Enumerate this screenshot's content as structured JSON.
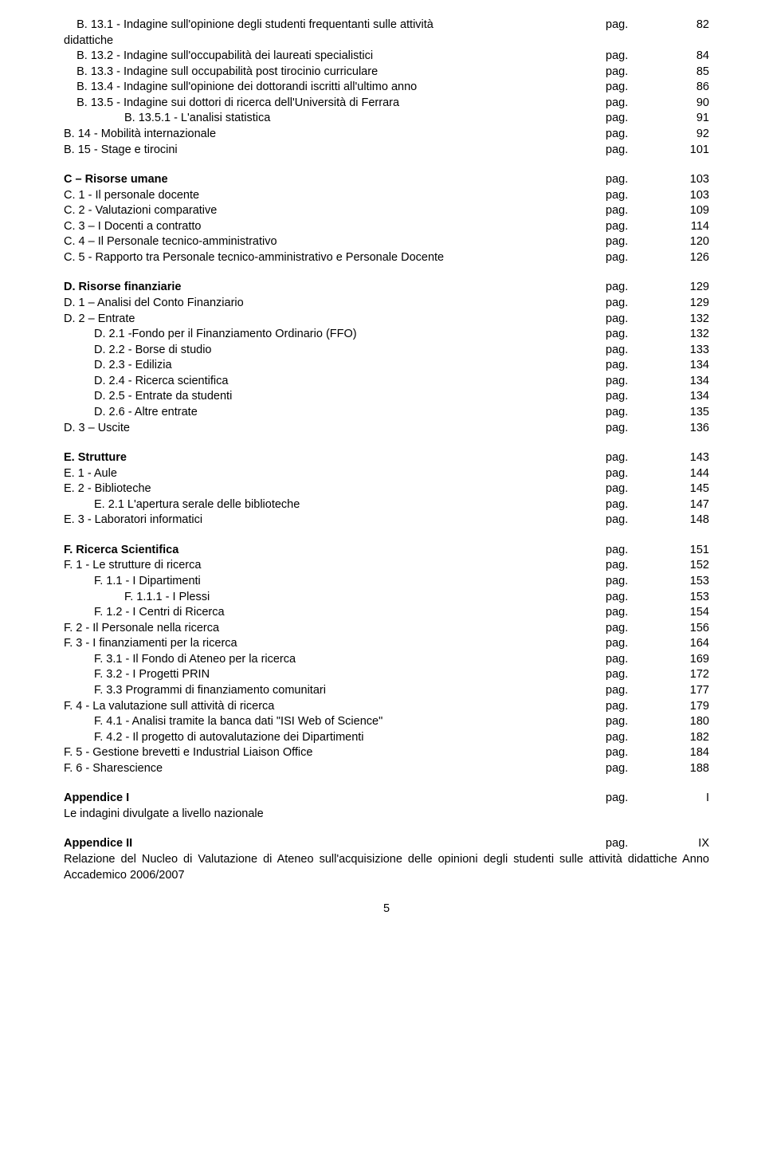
{
  "sections": [
    {
      "spacer": false,
      "rows": [
        {
          "title": "    B. 13.1 - Indagine sull'opinione degli studenti frequentanti sulle attività\ndidattiche",
          "pag": "pag.",
          "num": "82"
        },
        {
          "title": "    B. 13.2 - Indagine sull'occupabilità dei laureati specialistici",
          "pag": "pag.",
          "num": "84"
        },
        {
          "title": "    B. 13.3 - Indagine sull occupabilità post tirocinio curriculare",
          "pag": "pag.",
          "num": "85"
        },
        {
          "title": "    B. 13.4 - Indagine sull'opinione dei dottorandi iscritti all'ultimo anno",
          "pag": "pag.",
          "num": "86"
        },
        {
          "title": "    B. 13.5 - Indagine sui dottori di ricerca dell'Università di Ferrara",
          "pag": "pag.",
          "num": "90"
        },
        {
          "indent": "ind2",
          "title": "B. 13.5.1 - L'analisi statistica",
          "pag": "pag.",
          "num": "91"
        },
        {
          "title": "B. 14 - Mobilità internazionale",
          "pag": "pag.",
          "num": "92"
        },
        {
          "title": "B. 15 - Stage e tirocini",
          "pag": "pag.",
          "num": "101"
        }
      ]
    },
    {
      "spacer": true,
      "rows": [
        {
          "bold": true,
          "title": "C – Risorse umane",
          "pag": "pag.",
          "num": "103"
        },
        {
          "title": "C. 1 - Il personale docente",
          "pag": "pag.",
          "num": "103"
        },
        {
          "title": "C. 2 - Valutazioni comparative",
          "pag": "pag.",
          "num": "109"
        },
        {
          "title": "C. 3 – I Docenti a contratto",
          "pag": "pag.",
          "num": "114"
        },
        {
          "title": "C. 4 – Il Personale tecnico-amministrativo",
          "pag": "pag.",
          "num": "120"
        },
        {
          "title": "C. 5 - Rapporto tra Personale tecnico-amministrativo e Personale Docente",
          "pag": "pag.",
          "num": "126"
        }
      ]
    },
    {
      "spacer": true,
      "rows": [
        {
          "bold": true,
          "title": "D. Risorse finanziarie",
          "pag": "pag.",
          "num": "129"
        },
        {
          "title": "D. 1 – Analisi del Conto Finanziario",
          "pag": "pag.",
          "num": "129"
        },
        {
          "title": "D. 2 – Entrate",
          "pag": "pag.",
          "num": "132"
        },
        {
          "indent": "ind1",
          "title": "D. 2.1 -Fondo per il Finanziamento Ordinario (FFO)",
          "pag": "pag.",
          "num": "132"
        },
        {
          "indent": "ind1",
          "title": "D. 2.2 - Borse di studio",
          "pag": "pag.",
          "num": "133"
        },
        {
          "indent": "ind1",
          "title": "D. 2.3 - Edilizia",
          "pag": "pag.",
          "num": "134"
        },
        {
          "indent": "ind1",
          "title": "D. 2.4 - Ricerca scientifica",
          "pag": "pag.",
          "num": "134"
        },
        {
          "indent": "ind1",
          "title": "D. 2.5 - Entrate da studenti",
          "pag": "pag.",
          "num": "134"
        },
        {
          "indent": "ind1",
          "title": "D. 2.6 - Altre entrate",
          "pag": "pag.",
          "num": "135"
        },
        {
          "title": "D. 3 – Uscite",
          "pag": "pag.",
          "num": "136"
        }
      ]
    },
    {
      "spacer": true,
      "rows": [
        {
          "bold": true,
          "title": "E. Strutture",
          "pag": "pag.",
          "num": "143"
        },
        {
          "title": "E. 1 - Aule",
          "pag": "pag.",
          "num": "144"
        },
        {
          "title": "E. 2 - Biblioteche",
          "pag": "pag.",
          "num": "145"
        },
        {
          "indent": "ind1",
          "title": "E. 2.1 L'apertura serale delle biblioteche",
          "pag": "pag.",
          "num": "147"
        },
        {
          "title": "E. 3 - Laboratori informatici",
          "pag": "pag.",
          "num": "148"
        }
      ]
    },
    {
      "spacer": true,
      "rows": [
        {
          "bold": true,
          "title": "F. Ricerca Scientifica",
          "pag": "pag.",
          "num": "151"
        },
        {
          "title": "F. 1 - Le strutture di ricerca",
          "pag": "pag.",
          "num": "152"
        },
        {
          "indent": "ind1",
          "title": "F. 1.1 - I Dipartimenti",
          "pag": "pag.",
          "num": "153"
        },
        {
          "indent": "ind2",
          "title": "F. 1.1.1 - I Plessi",
          "pag": "pag.",
          "num": "153"
        },
        {
          "indent": "ind1",
          "title": "F. 1.2 - I Centri di Ricerca",
          "pag": "pag.",
          "num": "154"
        },
        {
          "title": "F. 2 - Il Personale nella ricerca",
          "pag": "pag.",
          "num": "156"
        },
        {
          "title": "F. 3 - I finanziamenti per la ricerca",
          "pag": "pag.",
          "num": "164"
        },
        {
          "indent": "ind1",
          "title": "F. 3.1 - Il Fondo di Ateneo per la ricerca",
          "pag": "pag.",
          "num": "169"
        },
        {
          "indent": "ind1",
          "title": "F. 3.2 - I Progetti PRIN",
          "pag": "pag.",
          "num": "172"
        },
        {
          "indent": "ind1",
          "title": "F. 3.3 Programmi di finanziamento comunitari",
          "pag": "pag.",
          "num": "177"
        },
        {
          "title": "F. 4 - La valutazione sull attività di ricerca",
          "pag": "pag.",
          "num": "179"
        },
        {
          "indent": "ind1",
          "title": "F. 4.1 - Analisi tramite la banca dati \"ISI Web of Science\"",
          "pag": "pag.",
          "num": "180"
        },
        {
          "indent": "ind1",
          "title": "F. 4.2 - Il progetto di autovalutazione dei Dipartimenti",
          "pag": "pag.",
          "num": "182"
        },
        {
          "title": "F. 5 - Gestione brevetti e Industrial Liaison Office",
          "pag": "pag.",
          "num": "184"
        },
        {
          "title": "F. 6 - Sharescience",
          "pag": "pag.",
          "num": "188"
        }
      ]
    }
  ],
  "appendix1": {
    "heading": {
      "title": "Appendice I",
      "pag": "pag.",
      "num": "I"
    },
    "body": "Le indagini divulgate a livello nazionale"
  },
  "appendix2": {
    "heading": {
      "title": "Appendice II",
      "pag": "pag.",
      "num": "IX"
    },
    "body": "Relazione del Nucleo di Valutazione di Ateneo sull'acquisizione delle opinioni degli studenti sulle attività didattiche Anno Accademico 2006/2007"
  },
  "pageNumber": "5"
}
